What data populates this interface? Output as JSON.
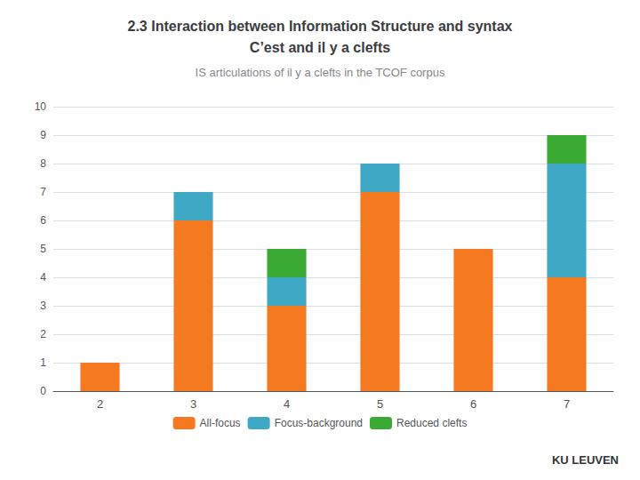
{
  "chart_data": {
    "type": "bar",
    "stacked": true,
    "title": "2.3 Interaction between Information Structure and syntax\nC’est and il y a clefts",
    "subtitle": "IS articulations of il y a clefts in the TCOF corpus",
    "annotations": [
      "KU LEUVEN"
    ],
    "categories": [
      2,
      3,
      4,
      5,
      6,
      7
    ],
    "series": [
      {
        "name": "All-focus",
        "color": "#f47920",
        "values": [
          1,
          6,
          3,
          7,
          5,
          4
        ]
      },
      {
        "name": "Focus-background",
        "color": "#3fa9c5",
        "values": [
          0,
          1,
          1,
          1,
          0,
          4
        ]
      },
      {
        "name": "Reduced clefts",
        "color": "#3aaa35",
        "values": [
          0,
          0,
          1,
          0,
          0,
          1
        ]
      }
    ],
    "ylim": [
      0,
      10
    ],
    "yticks": [
      0,
      1,
      2,
      3,
      4,
      5,
      6,
      7,
      8,
      9,
      10
    ],
    "grid": true,
    "legend": "bottom"
  }
}
